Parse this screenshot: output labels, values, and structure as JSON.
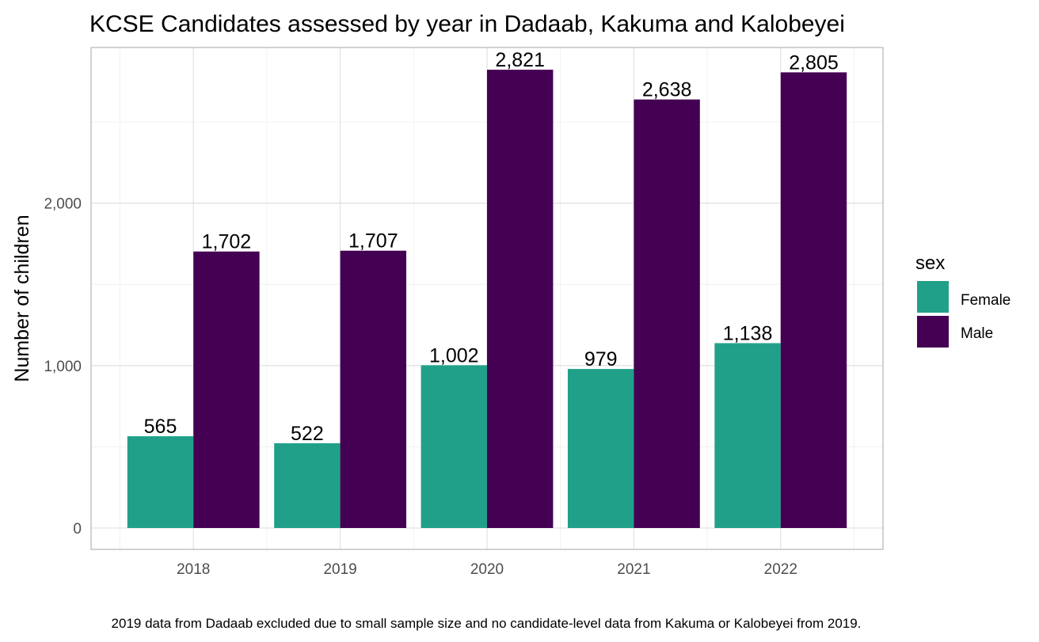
{
  "chart_data": {
    "type": "bar",
    "title": "KCSE Candidates assessed by year in Dadaab, Kakuma and Kalobeyei",
    "xlabel": "",
    "ylabel": "Number of children",
    "categories": [
      "2018",
      "2019",
      "2020",
      "2021",
      "2022"
    ],
    "series": [
      {
        "name": "Female",
        "color": "#21a089",
        "values": [
          565,
          522,
          1002,
          979,
          1138
        ],
        "labels": [
          "565",
          "522",
          "1,002",
          "979",
          "1,138"
        ]
      },
      {
        "name": "Male",
        "color": "#440154",
        "values": [
          1702,
          1707,
          2821,
          2638,
          2805
        ],
        "labels": [
          "1,702",
          "1,707",
          "2,821",
          "2,638",
          "2,805"
        ]
      }
    ],
    "ylim": [
      0,
      2821
    ],
    "yticks": [
      0,
      1000,
      2000
    ],
    "ytick_labels": [
      "0",
      "1,000",
      "2,000"
    ],
    "grid": true,
    "legend": {
      "title": "sex",
      "position": "right"
    },
    "caption": "2019 data from Dadaab excluded due to small sample size and no candidate-level data from Kakuma or Kalobeyei from 2019."
  }
}
